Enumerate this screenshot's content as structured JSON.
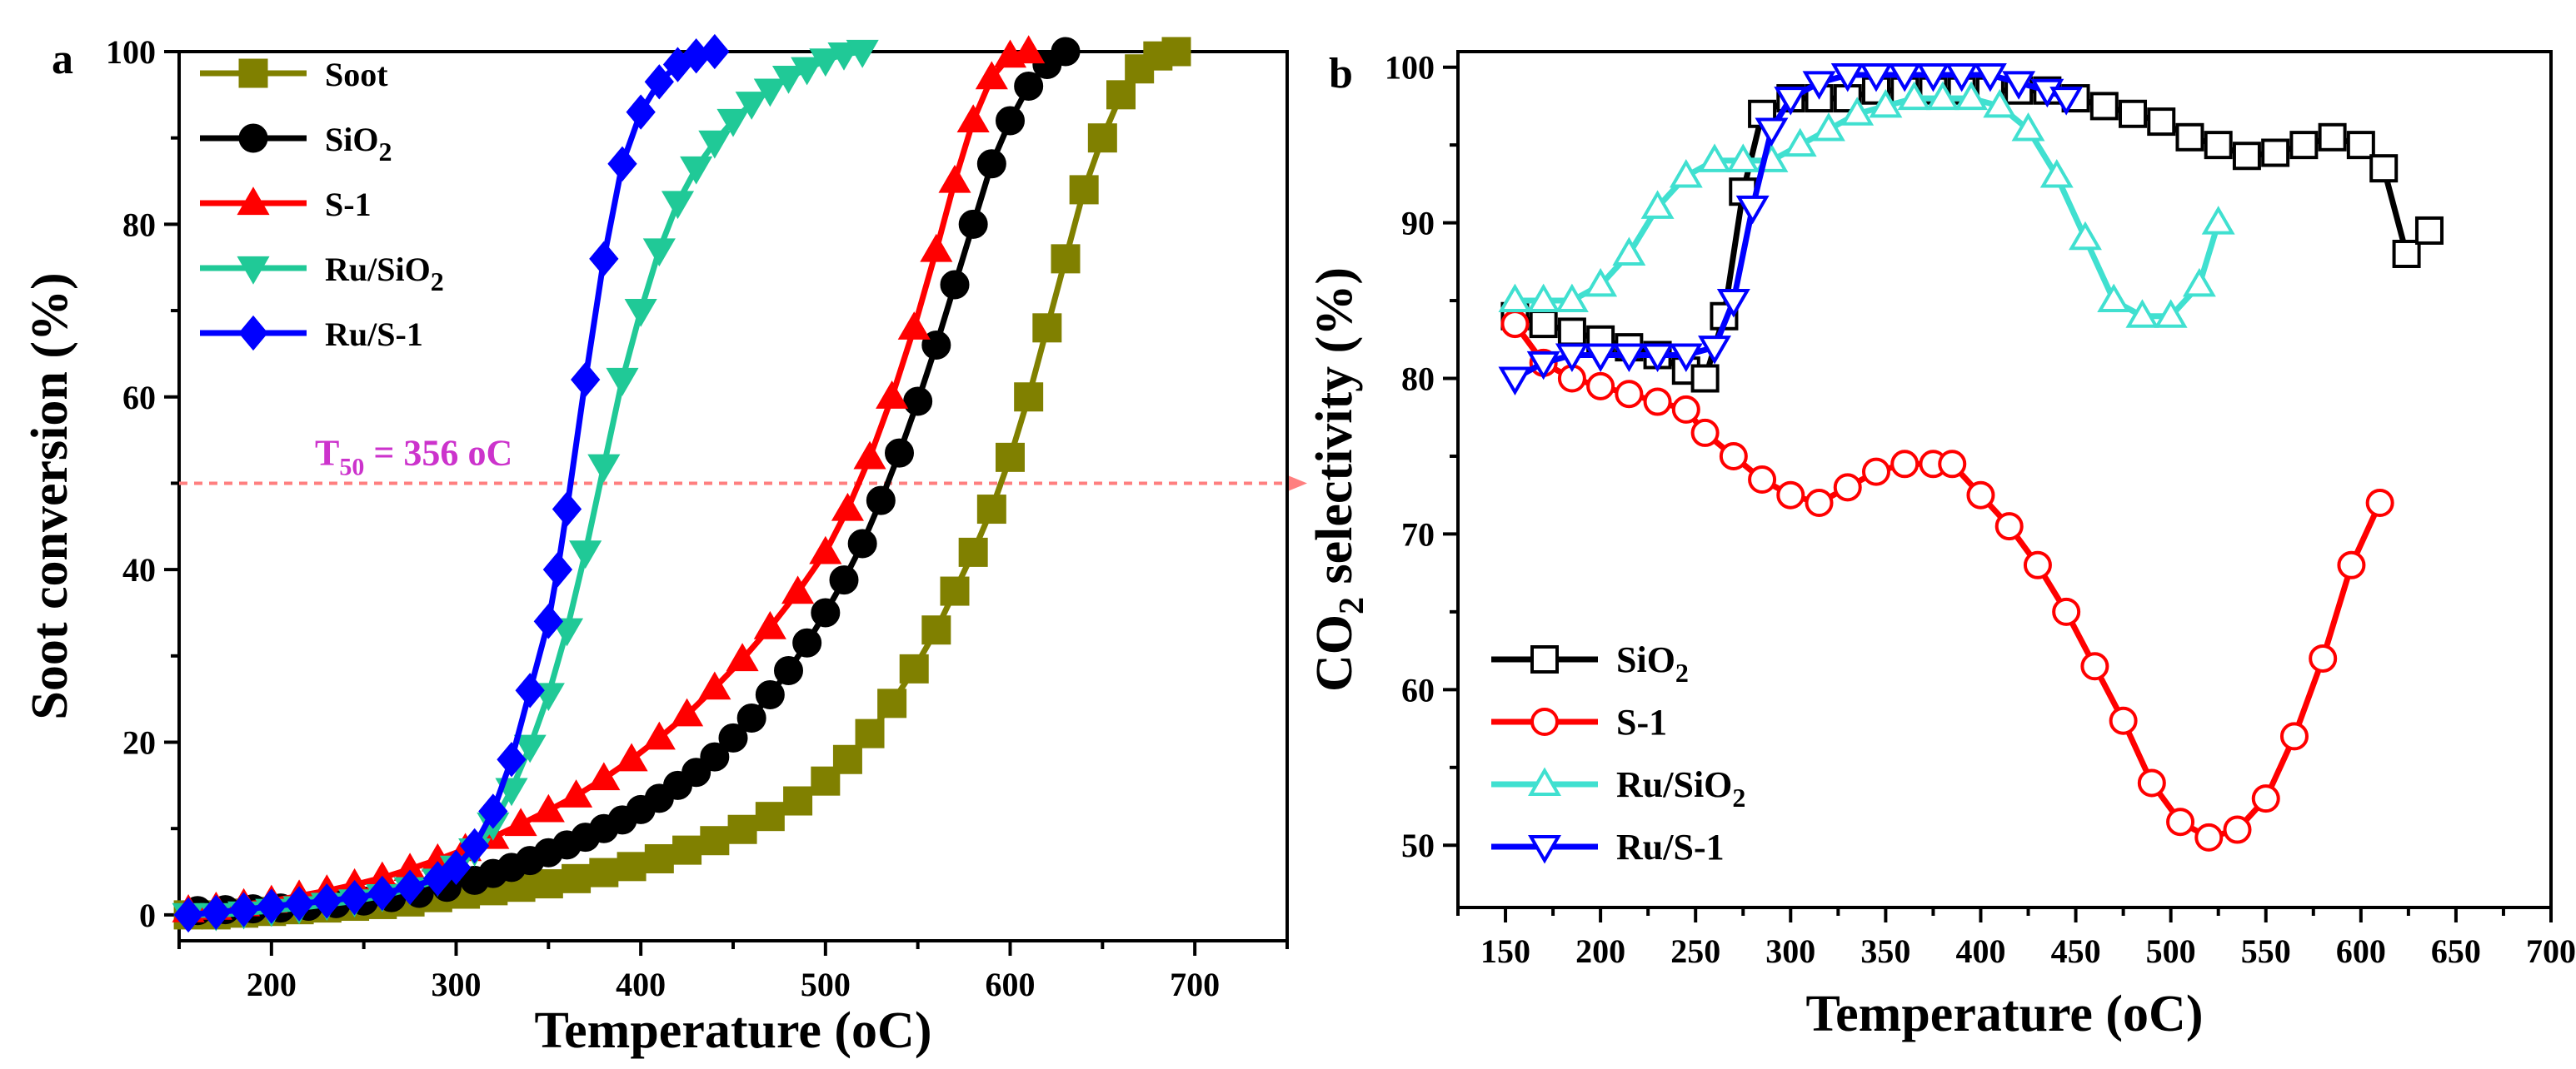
{
  "chart_data": [
    {
      "panel_label": "a",
      "type": "line",
      "title": "",
      "xlabel": "Temperature (",
      "xlabel_unit": "oC",
      "ylabel": "Soot conversion (%)",
      "xlim": [
        150,
        750
      ],
      "ylim": [
        -3,
        100
      ],
      "xticks": [
        200,
        300,
        400,
        500,
        600,
        700
      ],
      "yticks": [
        0,
        20,
        40,
        60,
        80,
        100
      ],
      "legend_position": "top-left",
      "annotation": {
        "text_main": "T",
        "text_sub": "50",
        "text_value": " = 356 ",
        "text_unit": "oC",
        "y": 50,
        "color": "#cc33cc",
        "line_color": "#ff7f7f"
      },
      "series": [
        {
          "name": "Soot",
          "name_main": "Soot",
          "name_sub": "",
          "color": "#808000",
          "marker": "square",
          "x": [
            155,
            170,
            185,
            200,
            215,
            230,
            245,
            260,
            275,
            290,
            305,
            320,
            335,
            350,
            365,
            380,
            395,
            410,
            425,
            440,
            455,
            470,
            485,
            500,
            512,
            524,
            536,
            548,
            560,
            570,
            580,
            590,
            600,
            610,
            620,
            630,
            640,
            650,
            660,
            670,
            680,
            690
          ],
          "y": [
            0,
            0,
            0.2,
            0.4,
            0.6,
            0.8,
            1,
            1.2,
            1.5,
            2,
            2.4,
            2.8,
            3.2,
            3.6,
            4.2,
            4.9,
            5.6,
            6.5,
            7.5,
            8.6,
            9.9,
            11.4,
            13.2,
            15.5,
            18,
            21,
            24.5,
            28.5,
            33,
            37.5,
            42,
            47,
            53,
            60,
            68,
            76,
            84,
            90,
            95,
            98,
            99.5,
            100
          ]
        },
        {
          "name": "SiO2",
          "name_main": "SiO",
          "name_sub": "2",
          "color": "#000000",
          "marker": "circle",
          "x": [
            160,
            175,
            190,
            205,
            220,
            235,
            250,
            265,
            280,
            295,
            310,
            320,
            330,
            340,
            350,
            360,
            370,
            380,
            390,
            400,
            410,
            420,
            430,
            440,
            450,
            460,
            470,
            480,
            490,
            500,
            510,
            520,
            530,
            540,
            550,
            560,
            570,
            580,
            590,
            600,
            610,
            620,
            630
          ],
          "y": [
            0.5,
            0.6,
            0.7,
            0.8,
            1,
            1.3,
            1.6,
            2,
            2.5,
            3.2,
            4,
            4.8,
            5.5,
            6.3,
            7.2,
            8.1,
            9,
            10,
            11,
            12.2,
            13.5,
            15,
            16.5,
            18.3,
            20.5,
            22.8,
            25.5,
            28.3,
            31.5,
            35,
            38.8,
            43,
            48,
            53.5,
            59.5,
            66,
            73,
            80,
            87,
            92,
            96,
            98.5,
            100
          ]
        },
        {
          "name": "S-1",
          "name_main": "S-1",
          "name_sub": "",
          "color": "#ff0000",
          "marker": "triangle-up",
          "x": [
            155,
            170,
            185,
            200,
            215,
            230,
            245,
            260,
            275,
            290,
            305,
            320,
            335,
            350,
            365,
            380,
            395,
            410,
            425,
            440,
            455,
            470,
            485,
            500,
            512,
            524,
            536,
            548,
            560,
            570,
            580,
            590,
            600,
            610
          ],
          "y": [
            0.5,
            0.8,
            1.2,
            1.6,
            2.2,
            2.8,
            3.5,
            4.3,
            5.3,
            6.4,
            7.6,
            9,
            10.5,
            12.1,
            13.8,
            15.8,
            18,
            20.5,
            23.2,
            26.3,
            29.6,
            33.3,
            37.4,
            42,
            47,
            53,
            60,
            68,
            77,
            85,
            92,
            97,
            99.5,
            100
          ]
        },
        {
          "name": "Ru/SiO2",
          "name_main": "Ru/SiO",
          "name_sub": "2",
          "color": "#20c997",
          "marker": "triangle-down",
          "x": [
            155,
            170,
            185,
            200,
            215,
            230,
            245,
            260,
            275,
            290,
            300,
            310,
            320,
            330,
            340,
            350,
            360,
            370,
            380,
            390,
            400,
            410,
            420,
            430,
            440,
            450,
            460,
            470,
            480,
            490,
            500,
            510,
            520
          ],
          "y": [
            0,
            0,
            0.2,
            0.5,
            0.8,
            1.2,
            1.6,
            2.2,
            3,
            4,
            5.5,
            7.5,
            10.5,
            14.5,
            19.5,
            25.5,
            33,
            42,
            52,
            62,
            70,
            77,
            82.5,
            86.5,
            89.5,
            92,
            94,
            95.5,
            97,
            98,
            99,
            99.7,
            100
          ]
        },
        {
          "name": "Ru/S-1",
          "name_main": "Ru/S-1",
          "name_sub": "",
          "color": "#0000ff",
          "marker": "diamond",
          "x": [
            155,
            170,
            185,
            200,
            215,
            230,
            245,
            260,
            275,
            290,
            300,
            310,
            320,
            330,
            340,
            350,
            355,
            360,
            370,
            380,
            390,
            400,
            410,
            420,
            430,
            440
          ],
          "y": [
            0,
            0.3,
            0.6,
            1,
            1.3,
            1.6,
            2,
            2.5,
            3.2,
            4.2,
            5.5,
            8,
            12,
            18,
            26,
            34,
            40,
            47,
            62,
            76,
            87,
            93,
            96.5,
            98.5,
            99.5,
            100
          ]
        }
      ]
    },
    {
      "panel_label": "b",
      "type": "line",
      "title": "",
      "xlabel": "Temperature (",
      "xlabel_unit": "oC",
      "ylabel_main": "CO",
      "ylabel_sub": "2",
      "ylabel_rest": " selectivity (%)",
      "xlim": [
        125,
        700
      ],
      "ylim": [
        46,
        101
      ],
      "xticks": [
        150,
        200,
        250,
        300,
        350,
        400,
        450,
        500,
        550,
        600,
        650,
        700
      ],
      "yticks": [
        50,
        60,
        70,
        80,
        90,
        100
      ],
      "legend_position": "bottom-left",
      "series": [
        {
          "name": "SiO2",
          "name_main": "SiO",
          "name_sub": "2",
          "color": "#000000",
          "marker": "open-square",
          "x": [
            155,
            170,
            185,
            200,
            215,
            230,
            245,
            255,
            265,
            275,
            285,
            300,
            315,
            330,
            345,
            360,
            375,
            390,
            405,
            420,
            435,
            450,
            465,
            480,
            495,
            510,
            525,
            540,
            555,
            570,
            585,
            600,
            612,
            624,
            636
          ],
          "y": [
            84,
            83.5,
            83,
            82.5,
            82,
            81.5,
            80.5,
            80,
            84,
            92,
            97,
            98,
            98,
            98,
            98.5,
            98.5,
            98.5,
            98.5,
            98.5,
            98.5,
            98.5,
            98,
            97.5,
            97,
            96.5,
            95.5,
            95,
            94.3,
            94.5,
            95,
            95.5,
            95,
            93.5,
            88,
            89.5
          ]
        },
        {
          "name": "S-1",
          "name_main": "S-1",
          "name_sub": "",
          "color": "#ff0000",
          "marker": "open-circle",
          "x": [
            155,
            170,
            185,
            200,
            215,
            230,
            245,
            255,
            270,
            285,
            300,
            315,
            330,
            345,
            360,
            375,
            385,
            400,
            415,
            430,
            445,
            460,
            475,
            490,
            505,
            520,
            535,
            550,
            565,
            580,
            595,
            610
          ],
          "y": [
            83.5,
            81,
            80,
            79.5,
            79,
            78.5,
            78,
            76.5,
            75,
            73.5,
            72.5,
            72,
            73,
            74,
            74.5,
            74.5,
            74.5,
            72.5,
            70.5,
            68,
            65,
            61.5,
            58,
            54,
            51.5,
            50.5,
            51,
            53,
            57,
            62,
            68,
            72
          ]
        },
        {
          "name": "Ru/SiO2",
          "name_main": "Ru/SiO",
          "name_sub": "2",
          "color": "#40e0d0",
          "marker": "open-triangle-up",
          "x": [
            155,
            170,
            185,
            200,
            215,
            230,
            245,
            260,
            275,
            290,
            305,
            320,
            335,
            350,
            365,
            380,
            395,
            410,
            425,
            440,
            455,
            470,
            485,
            500,
            515,
            525
          ],
          "y": [
            85,
            85,
            85,
            86,
            88,
            91,
            93,
            94,
            94,
            94,
            95,
            96,
            97,
            97.5,
            98,
            98,
            98,
            97.5,
            96,
            93,
            89,
            85,
            84,
            84,
            86,
            90
          ]
        },
        {
          "name": "Ru/S-1",
          "name_main": "Ru/S-1",
          "name_sub": "",
          "color": "#0000ff",
          "marker": "open-triangle-down",
          "x": [
            155,
            170,
            185,
            200,
            215,
            230,
            245,
            260,
            270,
            280,
            290,
            300,
            315,
            330,
            345,
            360,
            375,
            390,
            405,
            420,
            435,
            445
          ],
          "y": [
            80,
            81,
            81.5,
            81.5,
            81.5,
            81.5,
            81.5,
            82,
            85,
            91,
            96,
            98,
            99,
            99.5,
            99.5,
            99.5,
            99.5,
            99.5,
            99.5,
            99,
            98.5,
            98
          ]
        }
      ]
    }
  ]
}
